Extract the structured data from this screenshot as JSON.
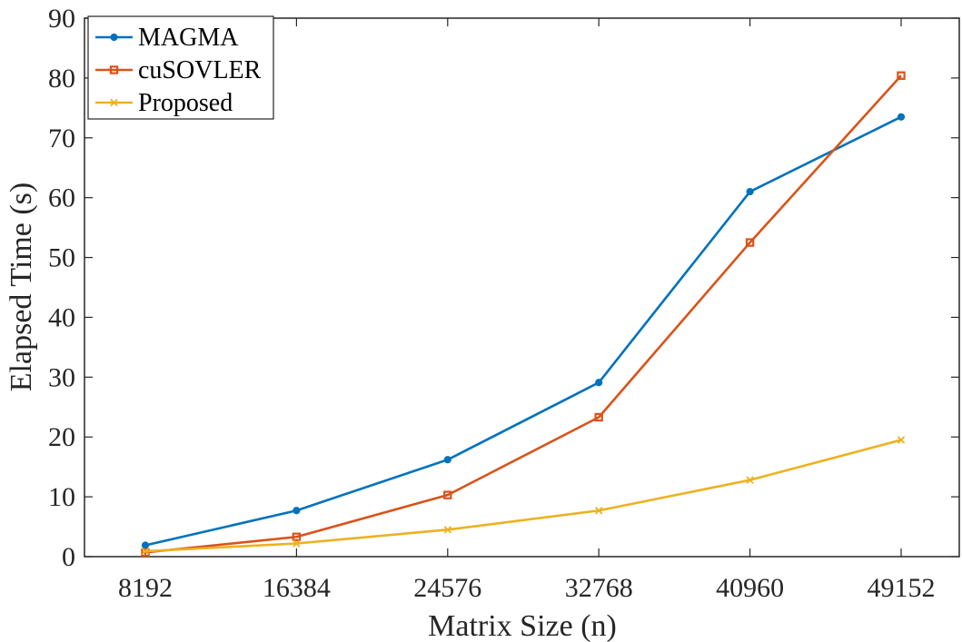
{
  "chart_data": {
    "type": "line",
    "xlabel": "Matrix Size (n)",
    "ylabel": "Elapsed Time (s)",
    "categories": [
      "8192",
      "16384",
      "24576",
      "32768",
      "40960",
      "49152"
    ],
    "ylim": [
      0,
      90
    ],
    "yticks": [
      0,
      10,
      20,
      30,
      40,
      50,
      60,
      70,
      80,
      90
    ],
    "grid": false,
    "legend": "top-left",
    "series": [
      {
        "name": "MAGMA",
        "color": "#0072BD",
        "marker": "circle",
        "values": [
          1.9,
          7.7,
          16.2,
          29.1,
          61.0,
          73.5
        ]
      },
      {
        "name": "cuSOVLER",
        "color": "#D95319",
        "marker": "square",
        "values": [
          0.7,
          3.3,
          10.3,
          23.3,
          52.5,
          80.4
        ]
      },
      {
        "name": "Proposed",
        "color": "#EDB120",
        "marker": "x",
        "values": [
          0.9,
          2.2,
          4.5,
          7.7,
          12.8,
          19.5
        ]
      }
    ]
  }
}
